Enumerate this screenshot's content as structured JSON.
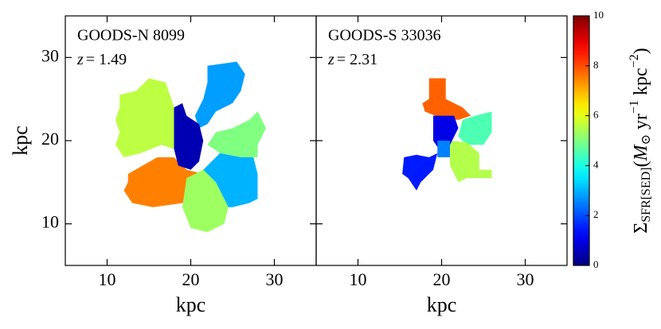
{
  "chart_data": {
    "type": "map",
    "xlabel": "kpc",
    "ylabel": "kpc",
    "xlim": [
      5,
      35
    ],
    "ylim": [
      5,
      35
    ],
    "xticks": [
      10,
      20,
      30
    ],
    "yticks": [
      10,
      20,
      30
    ],
    "panels": [
      {
        "title": "GOODS-N 8099",
        "redshift": [
          "z",
          "= 1.49"
        ],
        "regions": [
          {
            "value": 5.6,
            "x": [
              11.5,
              13.5,
              15,
              17,
              18,
              18,
              16.5,
              14,
              12,
              11,
              11.5,
              11,
              11.5
            ],
            "y": [
              25.5,
              26,
              27.5,
              27,
              24,
              19,
              19.5,
              18.5,
              18,
              19.5,
              21,
              22.5,
              24
            ]
          },
          {
            "value": 2.8,
            "x": [
              22,
              25.5,
              26.5,
              26,
              25,
              23,
              22,
              21,
              20.5,
              21.5,
              22
            ],
            "y": [
              29,
              29.5,
              28,
              26,
              24.5,
              23.5,
              22,
              21.5,
              23,
              25,
              27
            ]
          },
          {
            "value": 5.0,
            "x": [
              23,
              25,
              27,
              28,
              29,
              28,
              28,
              26,
              23.5,
              22
            ],
            "y": [
              21,
              21.5,
              22.5,
              23.5,
              21.5,
              19.5,
              18,
              18,
              18.5,
              19.5
            ]
          },
          {
            "value": 7.5,
            "x": [
              12.5,
              16,
              18,
              19.5,
              21.5,
              21,
              19,
              15.5,
              13,
              12,
              12.5
            ],
            "y": [
              16,
              18,
              18,
              16.5,
              16,
              13,
              12.5,
              12,
              12.5,
              14,
              15
            ]
          },
          {
            "value": 3.0,
            "x": [
              21.5,
              23.5,
              26,
              27.5,
              28,
              28,
              27,
              25,
              24.5,
              23
            ],
            "y": [
              16.5,
              18.5,
              18,
              18,
              16,
              13,
              12.5,
              12,
              12,
              15
            ]
          },
          {
            "value": 5.3,
            "x": [
              19.5,
              21.5,
              23,
              24.5,
              24,
              22,
              20,
              19
            ],
            "y": [
              15.5,
              16.5,
              15,
              12,
              10,
              9,
              9.5,
              12
            ]
          },
          {
            "value": 0.5,
            "x": [
              18,
              19,
              19.5,
              21,
              21.5,
              21,
              20,
              18.5,
              18
            ],
            "y": [
              24,
              24.5,
              23,
              22,
              20,
              17.5,
              16.5,
              17,
              19
            ]
          }
        ]
      },
      {
        "title": "GOODS-S 33036",
        "redshift": [
          "z",
          "= 2.31"
        ],
        "regions": [
          {
            "value": 7.8,
            "x": [
              18.5,
              20.5,
              20.5,
              22.5,
              23.5,
              22,
              20,
              18,
              17.7,
              18.5
            ],
            "y": [
              27.5,
              27.5,
              25,
              24,
              23,
              22.5,
              22.7,
              23.5,
              24.5,
              25
            ]
          },
          {
            "value": 4.5,
            "x": [
              22.5,
              24,
              26,
              26,
              25,
              23,
              22
            ],
            "y": [
              22.5,
              23,
              23.5,
              21,
              19.5,
              19.5,
              20.5
            ]
          },
          {
            "value": 5.5,
            "x": [
              21,
              23,
              24.5,
              24.5,
              26,
              26,
              23,
              22,
              21
            ],
            "y": [
              20,
              19.8,
              18.5,
              16.5,
              16.5,
              15.5,
              15.5,
              15,
              17
            ]
          },
          {
            "value": 1.0,
            "x": [
              19,
              21.5,
              22,
              21,
              20,
              19
            ],
            "y": [
              23,
              23,
              21.5,
              19.5,
              18.5,
              20
            ]
          },
          {
            "value": 2.5,
            "x": [
              19.5,
              21,
              21,
              19.5
            ],
            "y": [
              20,
              20,
              18,
              18
            ]
          },
          {
            "value": 1.5,
            "x": [
              15.5,
              17,
              18.5,
              19.5,
              19,
              17.5,
              17,
              16,
              15.3
            ],
            "y": [
              18,
              18.3,
              18,
              18.5,
              16.5,
              15,
              14,
              15.5,
              16
            ]
          }
        ]
      }
    ],
    "colorbar": {
      "colormap": "jet",
      "lim": [
        0,
        10
      ],
      "ticks": [
        0,
        2,
        4,
        6,
        8,
        10
      ],
      "label": [
        "Σ",
        "SFR[SED]",
        "(",
        "M",
        "⊙",
        " yr",
        "−1",
        " kpc",
        "−2",
        ")"
      ]
    }
  }
}
